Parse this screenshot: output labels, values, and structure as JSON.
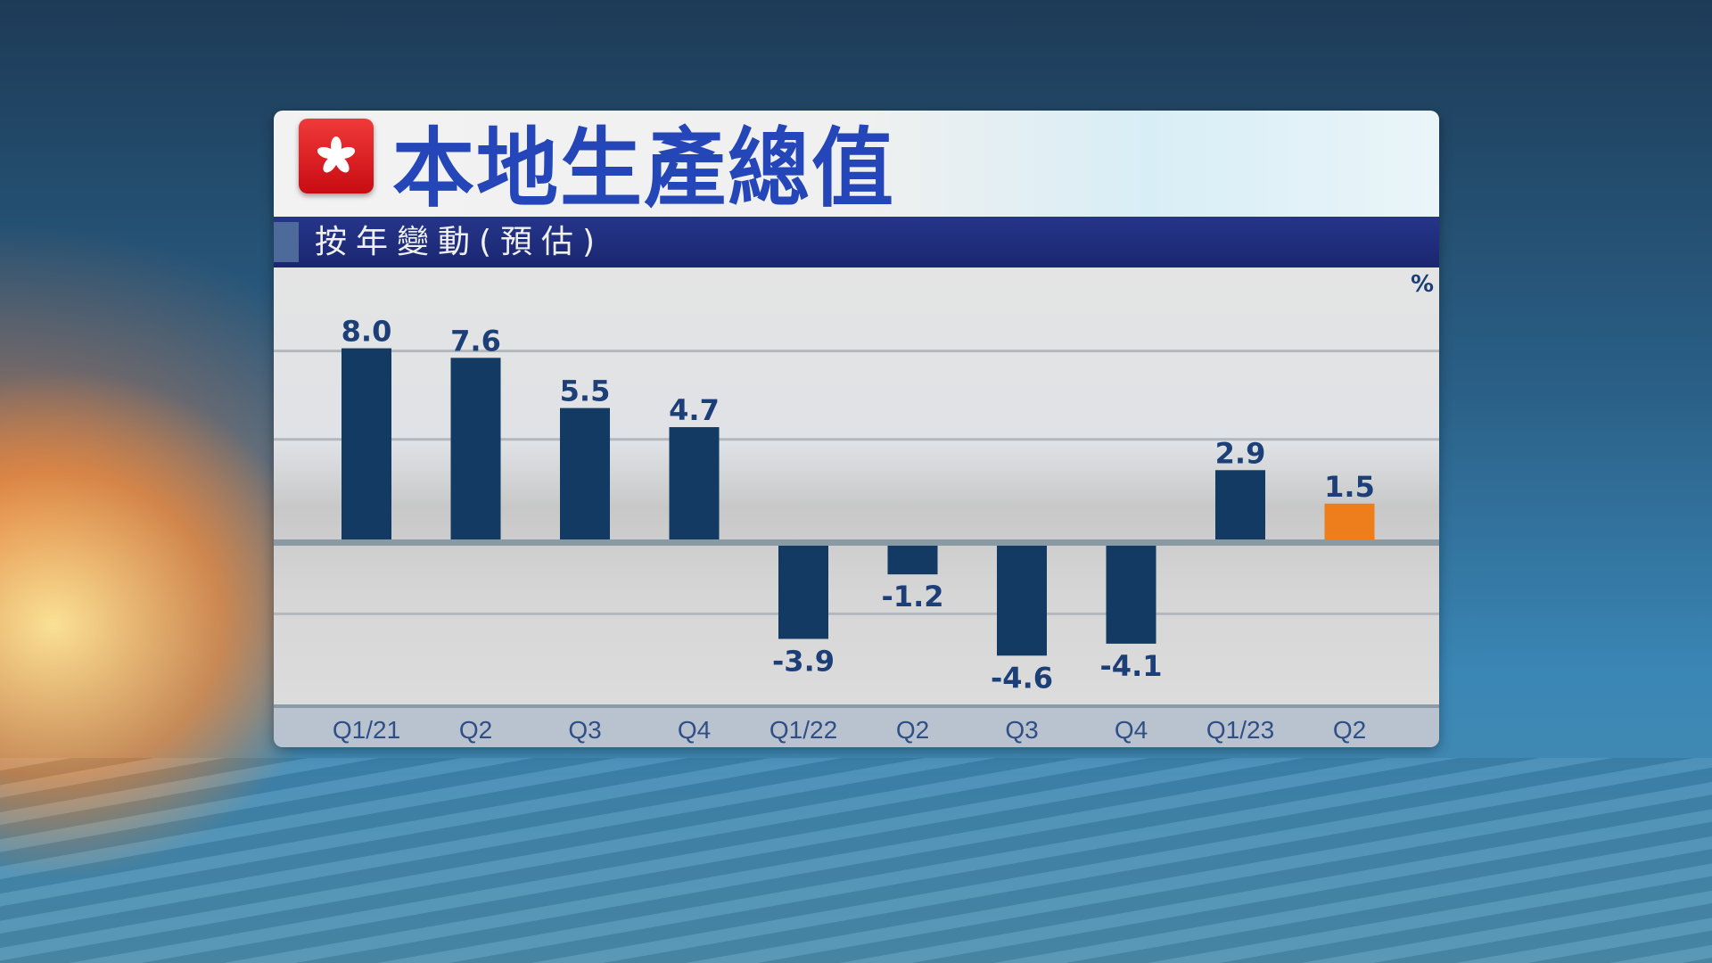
{
  "header": {
    "title": "本地生產總值",
    "subtitle": "按年變動(預估)",
    "logo_icon": "hong-kong-bauhinia-flag-icon"
  },
  "chart_data": {
    "type": "bar",
    "title": "本地生產總值",
    "subtitle": "按年變動(預估)",
    "unit": "%",
    "categories": [
      "Q1/21",
      "Q2",
      "Q3",
      "Q4",
      "Q1/22",
      "Q2",
      "Q3",
      "Q4",
      "Q1/23",
      "Q2"
    ],
    "values": [
      8.0,
      7.6,
      5.5,
      4.7,
      -3.9,
      -1.2,
      -4.6,
      -4.1,
      2.9,
      1.5
    ],
    "data_labels": [
      "8.0",
      "7.6",
      "5.5",
      "4.7",
      "-3.9",
      "-1.2",
      "-4.6",
      "-4.1",
      "2.9",
      "1.5"
    ],
    "xlabel": "",
    "ylabel": "",
    "grid": true,
    "colors": {
      "bar": "#133a63",
      "highlight": "#ee7d1c",
      "label": "#1d3f78",
      "axis_label": "#2f4f86"
    },
    "highlight_index": 9
  }
}
